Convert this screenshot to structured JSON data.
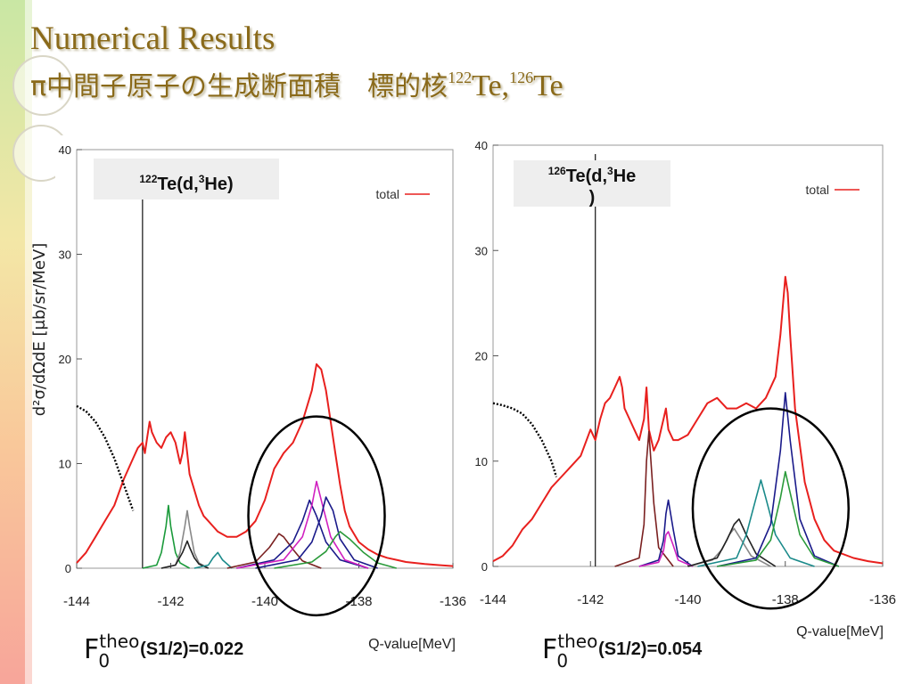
{
  "slide": {
    "title_line1": "Numerical Results",
    "title_line2_prefix": "π中間子原子の生成断面積　標的核",
    "title_target1_mass": "122",
    "title_target1_sym": "Te,",
    "title_target2_mass": "126",
    "title_target2_sym": "Te"
  },
  "captions": [
    {
      "F": "F",
      "sup": "theo",
      "sub": "0",
      "value": "(S1/2)=0.022"
    },
    {
      "F": "F",
      "sup": "theo",
      "sub": "0",
      "value": "(S1/2)=0.054"
    }
  ],
  "chart_data": [
    {
      "type": "line",
      "reaction_mass": "122",
      "reaction_rest": "Te(d,",
      "reaction_he_mass": "3",
      "reaction_he": "He)",
      "ylabel": "d²σ/dΩdE [μb/sr/MeV]",
      "xlabel": "Q-value[MeV]",
      "xlim": [
        -144,
        -136
      ],
      "ylim": [
        0,
        40
      ],
      "xticks": [
        "-144",
        "-142",
        "-140",
        "-138",
        "-136"
      ],
      "yticks": [
        "0",
        "10",
        "20",
        "30",
        "40"
      ],
      "legend": {
        "label": "total",
        "color": "#e8201e",
        "placement": "top-right"
      },
      "threshold_line_x": -142.6,
      "highlight_circle": {
        "cx": -138.9,
        "cy": 5,
        "rx": 1.45,
        "ry": 9.5
      },
      "series": [
        {
          "color": "#e8201e",
          "x": [
            -144,
            -143.8,
            -143.6,
            -143.4,
            -143.2,
            -143.0,
            -142.8,
            -142.7,
            -142.6,
            -142.55,
            -142.5,
            -142.45,
            -142.4,
            -142.3,
            -142.2,
            -142.1,
            -142.0,
            -141.9,
            -141.8,
            -141.75,
            -141.7,
            -141.65,
            -141.6,
            -141.5,
            -141.4,
            -141.3,
            -141.2,
            -141.1,
            -141.0,
            -140.8,
            -140.6,
            -140.4,
            -140.2,
            -140.0,
            -139.8,
            -139.6,
            -139.4,
            -139.2,
            -139.0,
            -138.9,
            -138.8,
            -138.7,
            -138.6,
            -138.5,
            -138.4,
            -138.3,
            -138.2,
            -138.0,
            -137.8,
            -137.6,
            -137.4,
            -137.2,
            -137.0,
            -136.6,
            -136.3,
            -136.0
          ],
          "y": [
            0.5,
            1.5,
            3,
            4.5,
            6,
            8.5,
            10.5,
            11.5,
            12,
            11,
            12.5,
            14,
            13,
            12,
            11.5,
            12.5,
            13,
            12,
            10,
            11,
            13,
            11,
            9,
            7.5,
            6,
            5,
            4.5,
            4,
            3.5,
            3,
            3,
            3.5,
            4.5,
            6.5,
            9.5,
            11,
            12,
            14,
            17,
            19.5,
            19,
            17,
            14,
            11,
            8,
            5.5,
            4,
            2.5,
            1.8,
            1.3,
            1,
            0.8,
            0.6,
            0.4,
            0.3,
            0.2
          ]
        },
        {
          "color": "#000000",
          "dashed": true,
          "x": [
            -144,
            -143.8,
            -143.6,
            -143.4,
            -143.2,
            -143.0,
            -142.8
          ],
          "y": [
            15.5,
            15,
            14,
            12.5,
            10.5,
            8,
            5.5
          ]
        },
        {
          "color": "#1a9a3a",
          "x": [
            -142.6,
            -142.3,
            -142.2,
            -142.1,
            -142.05,
            -142.0,
            -141.9,
            -141.8,
            -141.6
          ],
          "y": [
            0,
            0.3,
            1.5,
            4,
            6,
            4,
            1.5,
            0.5,
            0
          ]
        },
        {
          "color": "#888888",
          "x": [
            -142.2,
            -141.9,
            -141.8,
            -141.7,
            -141.65,
            -141.6,
            -141.5,
            -141.4,
            -141.2
          ],
          "y": [
            0,
            0.3,
            1.5,
            4,
            5.5,
            4,
            1.5,
            0.5,
            0
          ]
        },
        {
          "color": "#222222",
          "x": [
            -142.2,
            -141.9,
            -141.75,
            -141.65,
            -141.6,
            -141.5,
            -141.4,
            -141.2
          ],
          "y": [
            0,
            0.3,
            1.5,
            2.6,
            2,
            1,
            0.4,
            0
          ]
        },
        {
          "color": "#1a8a8a",
          "x": [
            -141.5,
            -141.2,
            -141.1,
            -141.0,
            -140.9,
            -140.7
          ],
          "y": [
            0,
            0.3,
            1,
            1.5,
            0.8,
            0
          ]
        },
        {
          "color": "#7a2020",
          "x": [
            -140.8,
            -140.2,
            -139.9,
            -139.7,
            -139.6,
            -139.4,
            -139.2,
            -138.8
          ],
          "y": [
            0,
            0.6,
            2,
            3.3,
            3,
            1.8,
            0.7,
            0
          ]
        },
        {
          "color": "#1a1a8a",
          "x": [
            -140.6,
            -139.8,
            -139.4,
            -139.2,
            -139.05,
            -138.9,
            -138.7,
            -138.4,
            -137.8
          ],
          "y": [
            0,
            0.8,
            2.5,
            4.5,
            6.5,
            5,
            2.5,
            0.8,
            0
          ]
        },
        {
          "color": "#d020c0",
          "x": [
            -140.6,
            -139.6,
            -139.2,
            -139.0,
            -138.9,
            -138.8,
            -138.6,
            -138.3,
            -137.8
          ],
          "y": [
            0,
            0.8,
            3,
            6,
            8.3,
            6.5,
            3,
            0.8,
            0
          ]
        },
        {
          "color": "#1a1a8a",
          "x": [
            -140.2,
            -139.3,
            -139.0,
            -138.8,
            -138.7,
            -138.55,
            -138.4,
            -138.1,
            -137.6
          ],
          "y": [
            0,
            0.8,
            2.5,
            5,
            6.8,
            5.5,
            2.8,
            0.8,
            0
          ]
        },
        {
          "color": "#2a9a3a",
          "x": [
            -139.8,
            -139.0,
            -138.7,
            -138.5,
            -138.4,
            -138.2,
            -137.9,
            -137.6,
            -137.2
          ],
          "y": [
            0,
            0.6,
            1.6,
            3,
            3.5,
            2.8,
            1.5,
            0.5,
            0
          ]
        }
      ]
    },
    {
      "type": "line",
      "reaction_mass": "126",
      "reaction_rest": "Te(d,",
      "reaction_he_mass": "3",
      "reaction_he": "He",
      "reaction_close": ")",
      "xlabel": "Q-value[MeV]",
      "xlim": [
        -144,
        -136
      ],
      "ylim": [
        0,
        40
      ],
      "xticks": [
        "-144",
        "-142",
        "-140",
        "-138",
        "-136"
      ],
      "yticks": [
        "0",
        "10",
        "20",
        "30",
        "40"
      ],
      "legend": {
        "label": "total",
        "color": "#e8201e",
        "placement": "top-right"
      },
      "threshold_line_x": -141.9,
      "highlight_circle": {
        "cx": -138.3,
        "cy": 5.5,
        "rx": 1.6,
        "ry": 9.5
      },
      "series": [
        {
          "color": "#e8201e",
          "x": [
            -144,
            -143.8,
            -143.6,
            -143.4,
            -143.2,
            -143.0,
            -142.8,
            -142.6,
            -142.4,
            -142.2,
            -142.0,
            -141.95,
            -141.9,
            -141.8,
            -141.7,
            -141.6,
            -141.5,
            -141.4,
            -141.35,
            -141.3,
            -141.2,
            -141.1,
            -141.0,
            -140.9,
            -140.85,
            -140.8,
            -140.7,
            -140.6,
            -140.5,
            -140.45,
            -140.4,
            -140.3,
            -140.2,
            -140.0,
            -139.8,
            -139.6,
            -139.4,
            -139.2,
            -139.0,
            -138.8,
            -138.6,
            -138.4,
            -138.2,
            -138.1,
            -138.0,
            -137.95,
            -137.9,
            -137.8,
            -137.6,
            -137.4,
            -137.2,
            -137.0,
            -136.6,
            -136.3,
            -136.0
          ],
          "y": [
            0.5,
            1,
            2,
            3.5,
            4.5,
            6,
            7.5,
            8.5,
            9.5,
            10.5,
            13,
            12.5,
            12,
            14,
            15.5,
            16,
            17,
            18,
            17,
            15,
            14,
            13,
            12,
            14,
            17,
            13,
            11,
            12,
            14,
            15,
            13,
            12,
            12,
            12.5,
            14,
            15.5,
            16,
            15,
            15,
            15.5,
            15,
            16,
            18,
            22,
            27.5,
            26,
            22,
            15,
            8,
            4.5,
            2.5,
            1.5,
            0.8,
            0.5,
            0.3
          ]
        },
        {
          "color": "#000000",
          "dashed": true,
          "x": [
            -144,
            -143.8,
            -143.6,
            -143.4,
            -143.2,
            -143.0,
            -142.8,
            -142.7
          ],
          "y": [
            15.5,
            15.3,
            15,
            14.5,
            13.5,
            12,
            10,
            8.5
          ]
        },
        {
          "color": "#7a2020",
          "x": [
            -141.5,
            -141.0,
            -140.9,
            -140.85,
            -140.8,
            -140.7,
            -140.6,
            -140.3
          ],
          "y": [
            0,
            0.8,
            4,
            10,
            12.8,
            6,
            1.8,
            0
          ]
        },
        {
          "color": "#1a1a8a",
          "x": [
            -141.0,
            -140.6,
            -140.5,
            -140.45,
            -140.4,
            -140.3,
            -140.2,
            -139.9
          ],
          "y": [
            0,
            0.6,
            2.5,
            5,
            6.3,
            3.5,
            1,
            0
          ]
        },
        {
          "color": "#d020c0",
          "x": [
            -141.0,
            -140.6,
            -140.5,
            -140.45,
            -140.4,
            -140.3,
            -140.2,
            -139.9
          ],
          "y": [
            0,
            0.4,
            1.5,
            3,
            3.3,
            2,
            0.6,
            0
          ]
        },
        {
          "color": "#888888",
          "x": [
            -140.0,
            -139.5,
            -139.3,
            -139.15,
            -139.05,
            -138.9,
            -138.7,
            -138.3
          ],
          "y": [
            0,
            0.6,
            1.6,
            3,
            3.6,
            2.5,
            1,
            0
          ]
        },
        {
          "color": "#222222",
          "x": [
            -140.0,
            -139.4,
            -139.2,
            -139.05,
            -138.95,
            -138.8,
            -138.6,
            -138.2
          ],
          "y": [
            0,
            0.8,
            2.5,
            4,
            4.5,
            3,
            1.2,
            0
          ]
        },
        {
          "color": "#1a8a8a",
          "x": [
            -139.8,
            -139.0,
            -138.8,
            -138.6,
            -138.5,
            -138.4,
            -138.2,
            -137.9,
            -137.4
          ],
          "y": [
            0,
            0.8,
            3,
            6.5,
            8.2,
            6.5,
            3,
            0.8,
            0
          ]
        },
        {
          "color": "#1a1a8a",
          "x": [
            -139.4,
            -138.6,
            -138.3,
            -138.1,
            -138.0,
            -137.9,
            -137.7,
            -137.4,
            -136.9
          ],
          "y": [
            0,
            0.8,
            4,
            11,
            16.5,
            12,
            4.5,
            1,
            0
          ]
        },
        {
          "color": "#2a9a3a",
          "x": [
            -139.4,
            -138.6,
            -138.3,
            -138.1,
            -138.0,
            -137.9,
            -137.7,
            -137.4,
            -136.9
          ],
          "y": [
            0,
            0.6,
            2.5,
            6.5,
            9,
            7,
            3,
            0.8,
            0
          ]
        }
      ]
    }
  ]
}
